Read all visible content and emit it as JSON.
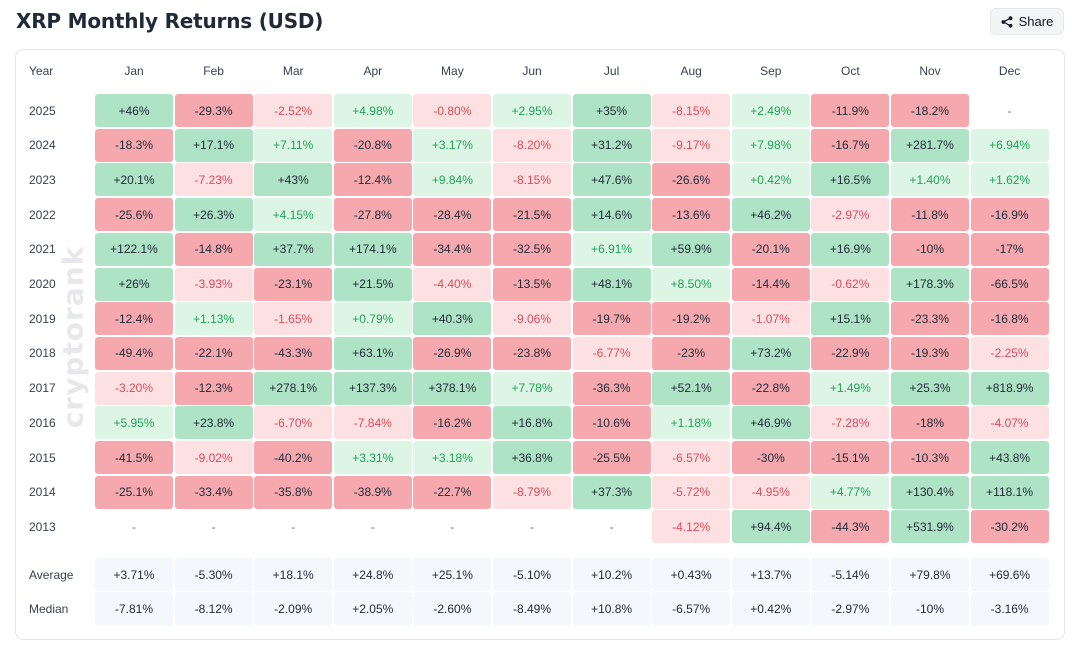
{
  "title": "XRP Monthly Returns (USD)",
  "share_label": "Share",
  "watermark": "cryptorank",
  "header": {
    "year": "Year",
    "months": [
      "Jan",
      "Feb",
      "Mar",
      "Apr",
      "May",
      "Jun",
      "Jul",
      "Aug",
      "Sep",
      "Oct",
      "Nov",
      "Dec"
    ]
  },
  "rows": [
    {
      "year": "2025",
      "values": [
        "+46%",
        "-29.3%",
        "-2.52%",
        "+4.98%",
        "-0.80%",
        "+2.95%",
        "+35%",
        "-8.15%",
        "+2.49%",
        "-11.9%",
        "-18.2%",
        "-"
      ]
    },
    {
      "year": "2024",
      "values": [
        "-18.3%",
        "+17.1%",
        "+7.11%",
        "-20.8%",
        "+3.17%",
        "-8.20%",
        "+31.2%",
        "-9.17%",
        "+7.98%",
        "-16.7%",
        "+281.7%",
        "+6.94%"
      ]
    },
    {
      "year": "2023",
      "values": [
        "+20.1%",
        "-7.23%",
        "+43%",
        "-12.4%",
        "+9.84%",
        "-8.15%",
        "+47.6%",
        "-26.6%",
        "+0.42%",
        "+16.5%",
        "+1.40%",
        "+1.62%"
      ]
    },
    {
      "year": "2022",
      "values": [
        "-25.6%",
        "+26.3%",
        "+4.15%",
        "-27.8%",
        "-28.4%",
        "-21.5%",
        "+14.6%",
        "-13.6%",
        "+46.2%",
        "-2.97%",
        "-11.8%",
        "-16.9%"
      ]
    },
    {
      "year": "2021",
      "values": [
        "+122.1%",
        "-14.8%",
        "+37.7%",
        "+174.1%",
        "-34.4%",
        "-32.5%",
        "+6.91%",
        "+59.9%",
        "-20.1%",
        "+16.9%",
        "-10%",
        "-17%"
      ]
    },
    {
      "year": "2020",
      "values": [
        "+26%",
        "-3.93%",
        "-23.1%",
        "+21.5%",
        "-4.40%",
        "-13.5%",
        "+48.1%",
        "+8.50%",
        "-14.4%",
        "-0.62%",
        "+178.3%",
        "-66.5%"
      ]
    },
    {
      "year": "2019",
      "values": [
        "-12.4%",
        "+1.13%",
        "-1.65%",
        "+0.79%",
        "+40.3%",
        "-9.06%",
        "-19.7%",
        "-19.2%",
        "-1.07%",
        "+15.1%",
        "-23.3%",
        "-16.8%"
      ]
    },
    {
      "year": "2018",
      "values": [
        "-49.4%",
        "-22.1%",
        "-43.3%",
        "+63.1%",
        "-26.9%",
        "-23.8%",
        "-6.77%",
        "-23%",
        "+73.2%",
        "-22.9%",
        "-19.3%",
        "-2.25%"
      ]
    },
    {
      "year": "2017",
      "values": [
        "-3.20%",
        "-12.3%",
        "+278.1%",
        "+137.3%",
        "+378.1%",
        "+7.78%",
        "-36.3%",
        "+52.1%",
        "-22.8%",
        "+1.49%",
        "+25.3%",
        "+818.9%"
      ]
    },
    {
      "year": "2016",
      "values": [
        "+5.95%",
        "+23.8%",
        "-6.70%",
        "-7.84%",
        "-16.2%",
        "+16.8%",
        "-10.6%",
        "+1.18%",
        "+46.9%",
        "-7.28%",
        "-18%",
        "-4.07%"
      ]
    },
    {
      "year": "2015",
      "values": [
        "-41.5%",
        "-9.02%",
        "-40.2%",
        "+3.31%",
        "+3.18%",
        "+36.8%",
        "-25.5%",
        "-6.57%",
        "-30%",
        "-15.1%",
        "-10.3%",
        "+43.8%"
      ]
    },
    {
      "year": "2014",
      "values": [
        "-25.1%",
        "-33.4%",
        "-35.8%",
        "-38.9%",
        "-22.7%",
        "-8.79%",
        "+37.3%",
        "-5.72%",
        "-4.95%",
        "+4.77%",
        "+130.4%",
        "+118.1%"
      ]
    },
    {
      "year": "2013",
      "values": [
        "-",
        "-",
        "-",
        "-",
        "-",
        "-",
        "-",
        "-4.12%",
        "+94.4%",
        "-44.3%",
        "+531.9%",
        "-30.2%"
      ]
    }
  ],
  "summary": [
    {
      "label": "Average",
      "values": [
        "+3.71%",
        "-5.30%",
        "+18.1%",
        "+24.8%",
        "+25.1%",
        "-5.10%",
        "+10.2%",
        "+0.43%",
        "+13.7%",
        "-5.14%",
        "+79.8%",
        "+69.6%"
      ]
    },
    {
      "label": "Median",
      "values": [
        "-7.81%",
        "-8.12%",
        "-2.09%",
        "+2.05%",
        "-2.60%",
        "-8.49%",
        "+10.8%",
        "-6.57%",
        "+0.42%",
        "-2.97%",
        "-10%",
        "-3.16%"
      ]
    }
  ],
  "colors": {
    "strong_pos_bg": "#aee3c6",
    "light_pos_bg": "#dcf5e4",
    "strong_neg_bg": "#f5a8ad",
    "light_neg_bg": "#fde0e2",
    "light_pos_text": "#22a35a",
    "light_neg_text": "#d94c5a",
    "strong_text": "#1f2937",
    "summary_bg": "#f4f7fb"
  }
}
